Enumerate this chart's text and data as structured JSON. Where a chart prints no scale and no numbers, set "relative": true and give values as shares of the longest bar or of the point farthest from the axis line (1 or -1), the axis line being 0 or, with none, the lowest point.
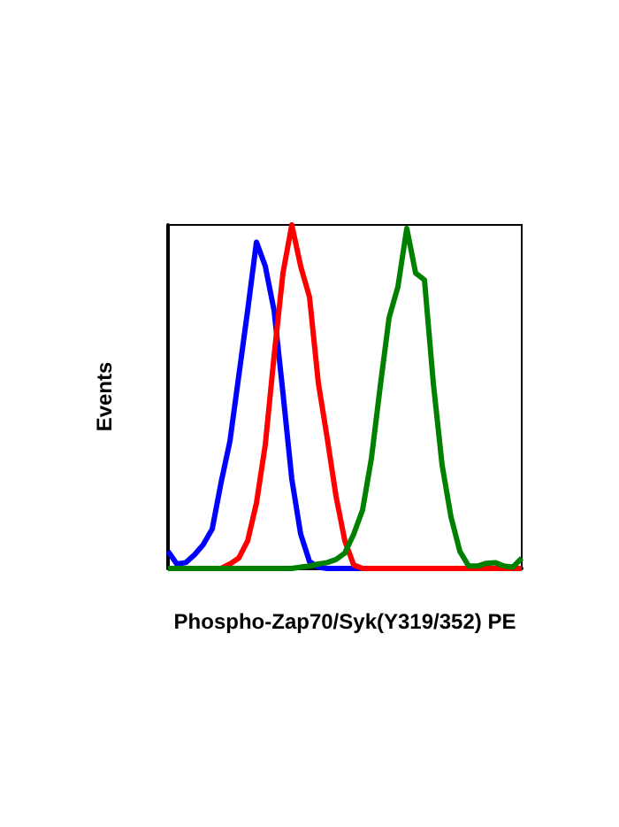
{
  "chart_data": {
    "type": "line",
    "relative": true,
    "xlabel": "Phospho-Zap70/Syk(Y319/352) PE",
    "ylabel": "Events",
    "grid": false,
    "legend": false,
    "categories": [
      null,
      null,
      null,
      null,
      null,
      null,
      null,
      null,
      null,
      null,
      null,
      null,
      null,
      null,
      null,
      null,
      null,
      null,
      null,
      null,
      null,
      null,
      null,
      null,
      null,
      null,
      null,
      null,
      null,
      null,
      null,
      null,
      null,
      null,
      null,
      null,
      null,
      null,
      null,
      null,
      null
    ],
    "series": [
      {
        "color": "#0000ff",
        "values": [
          0.05,
          0.013,
          0.017,
          0.04,
          0.07,
          0.115,
          0.25,
          0.37,
          0.56,
          0.75,
          0.95,
          0.88,
          0.75,
          0.51,
          0.26,
          0.1,
          0.02,
          0.004,
          0,
          0,
          0,
          0,
          0,
          0,
          null,
          null,
          null,
          null,
          null,
          null,
          null,
          null,
          null,
          null,
          null,
          null,
          null,
          null,
          null,
          null,
          null
        ]
      },
      {
        "color": "#ff0000",
        "values": [
          null,
          null,
          null,
          null,
          null,
          0,
          0,
          0.013,
          0.03,
          0.08,
          0.19,
          0.36,
          0.62,
          0.86,
          1,
          0.88,
          0.79,
          0.54,
          0.38,
          0.21,
          0.08,
          0.01,
          0,
          0,
          0,
          0,
          0,
          0,
          0,
          0,
          0,
          0,
          0,
          0,
          0,
          0,
          0,
          0,
          0,
          0,
          0
        ]
      },
      {
        "color": "#008000",
        "values": [
          0,
          0,
          0,
          0,
          0,
          0,
          0,
          0,
          0,
          0,
          0,
          0,
          0,
          0,
          0,
          0.004,
          0.007,
          0.013,
          0.017,
          0.026,
          0.045,
          0.1,
          0.17,
          0.32,
          0.53,
          0.73,
          0.82,
          0.99,
          0.86,
          0.84,
          0.54,
          0.3,
          0.15,
          0.05,
          0.007,
          0.007,
          0.015,
          0.017,
          0.007,
          0.004,
          0.03
        ]
      }
    ]
  }
}
